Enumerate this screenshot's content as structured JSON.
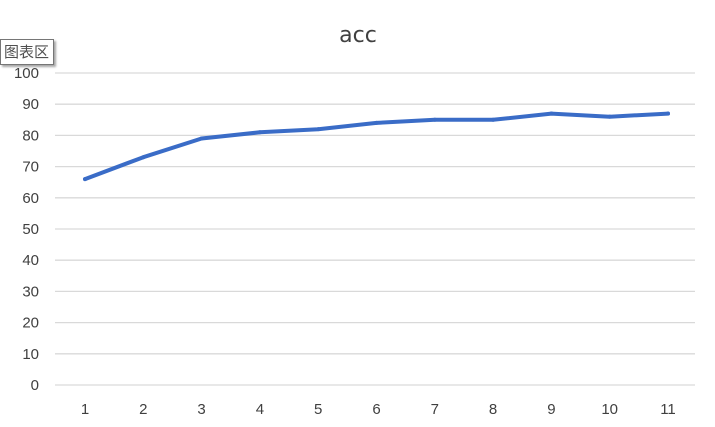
{
  "tooltip": {
    "label": "图表区"
  },
  "colors": {
    "series": "#3a6cc7",
    "gridline": "#d9d9d9",
    "text": "#404040"
  },
  "chart_data": {
    "type": "line",
    "title": "acc",
    "xlabel": "",
    "ylabel": "",
    "categories": [
      "1",
      "2",
      "3",
      "4",
      "5",
      "6",
      "7",
      "8",
      "9",
      "10",
      "11"
    ],
    "series": [
      {
        "values": [
          66,
          73,
          79,
          81,
          82,
          84,
          85,
          85,
          87,
          86,
          87
        ],
        "color": "#3a6cc7"
      }
    ],
    "ylim": [
      0,
      100
    ],
    "yticks": [
      0,
      10,
      20,
      30,
      40,
      50,
      60,
      70,
      80,
      90,
      100
    ],
    "grid": true,
    "legend": "none"
  }
}
